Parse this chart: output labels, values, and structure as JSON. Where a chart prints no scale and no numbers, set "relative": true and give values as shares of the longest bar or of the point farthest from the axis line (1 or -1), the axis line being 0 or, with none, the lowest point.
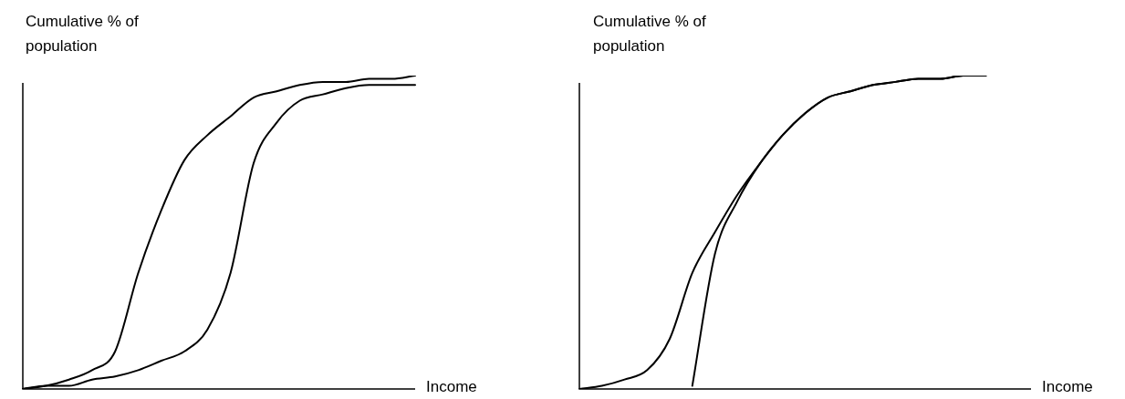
{
  "chart_data": [
    {
      "type": "line",
      "relative": true,
      "ylabel": "Cumulative % of population",
      "xlabel": "Income",
      "categories": [
        null,
        null,
        null,
        null,
        null,
        null,
        null,
        null,
        null,
        null,
        null,
        null,
        null,
        null,
        null,
        null,
        null,
        null
      ],
      "series": [
        {
          "color": "#000000",
          "values": [
            0,
            0.01,
            0.03,
            0.06,
            0.12,
            0.37,
            0.57,
            0.73,
            0.81,
            0.87,
            0.93,
            0.95,
            0.97,
            0.98,
            0.98,
            0.99,
            0.99,
            1
          ]
        },
        {
          "color": "#000000",
          "values": [
            0,
            0.01,
            0.01,
            0.03,
            0.04,
            0.06,
            0.09,
            0.12,
            0.19,
            0.37,
            0.72,
            0.85,
            0.92,
            0.94,
            0.96,
            0.97,
            0.97,
            0.97
          ]
        }
      ]
    },
    {
      "type": "line",
      "relative": true,
      "ylabel": "Cumulative % of population",
      "xlabel": "Income",
      "categories": [
        null,
        null,
        null,
        null,
        null,
        null,
        null,
        null,
        null,
        null,
        null,
        null,
        null,
        null,
        null,
        null,
        null,
        null,
        null,
        null,
        null
      ],
      "series": [
        {
          "color": "#000000",
          "values": [
            0,
            0.01,
            0.03,
            0.06,
            0.16,
            0.37,
            0.5,
            0.62,
            0.72,
            0.81,
            0.88,
            0.93,
            0.95,
            0.97,
            0.98,
            0.99,
            0.99,
            1,
            1,
            null,
            null
          ]
        },
        {
          "color": "#000000",
          "values": [
            null,
            null,
            null,
            null,
            null,
            0.01,
            0.43,
            0.6,
            0.72,
            0.81,
            0.88,
            0.93,
            0.95,
            0.97,
            0.98,
            0.99,
            0.99,
            1,
            1,
            null,
            null
          ]
        }
      ]
    }
  ]
}
